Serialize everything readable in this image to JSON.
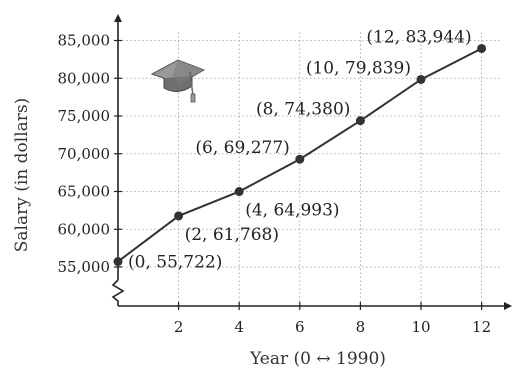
{
  "chart_data": {
    "type": "line",
    "title": "",
    "xlabel": "Year (0 ↔ 1990)",
    "ylabel": "Salary (in dollars)",
    "xlim": [
      0,
      13
    ],
    "ylim": [
      52000,
      88000
    ],
    "x_ticks": [
      2,
      4,
      6,
      8,
      10,
      12
    ],
    "x_tick_labels": [
      "2",
      "4",
      "6",
      "8",
      "10",
      "12"
    ],
    "y_ticks": [
      55000,
      60000,
      65000,
      70000,
      75000,
      80000,
      85000
    ],
    "y_tick_labels": [
      "55,000",
      "60,000",
      "65,000",
      "70,000",
      "75,000",
      "80,000",
      "85,000"
    ],
    "grid": true,
    "y_axis_break": true,
    "decoration_icon": "graduation-cap-icon",
    "series": [
      {
        "x": [
          0,
          2,
          4,
          6,
          8,
          10,
          12
        ],
        "y": [
          55722,
          61768,
          64993,
          69277,
          74380,
          79839,
          83944
        ],
        "point_labels": [
          "(0, 55,722)",
          "(2, 61,768)",
          "(4, 64,993)",
          "(6, 69,277)",
          "(8, 74,380)",
          "(10, 79,839)",
          "(12, 83,944)"
        ],
        "label_positions": [
          "right",
          "below-right",
          "below-right",
          "left",
          "above-left",
          "above-left",
          "above-left"
        ]
      }
    ]
  }
}
